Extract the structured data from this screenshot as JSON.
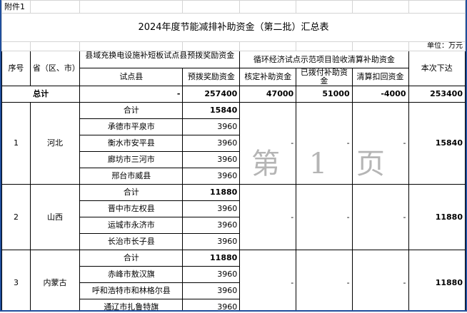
{
  "attachment_label": "附件1",
  "title": "2024年度节能减排补助资金（第二批）汇总表",
  "unit": "单位：万元",
  "headers": {
    "seq": "序号",
    "province": "省（区、市）",
    "group1": "县域充换电设施补短板试点县预拨奖励资金",
    "group1_county": "试点县",
    "group1_amount": "预拨奖励资金",
    "group2": "循环经济试点示范项目验收清算补助资金",
    "approved": "核定补助资金",
    "paid": "已拨付补助资金",
    "recovered": "清算扣回资金",
    "this_time": "本次下达"
  },
  "total": {
    "label": "总计",
    "county": "-",
    "amount": "257400",
    "approved": "47000",
    "paid": "51000",
    "recovered": "-4000",
    "this_time": "253400"
  },
  "subtotal_label": "合计",
  "provinces": [
    {
      "seq": "1",
      "name": "河北",
      "subtotal": "15840",
      "approved": "-",
      "paid": "-",
      "recovered": "-",
      "this_time": "15840",
      "counties": [
        {
          "name": "承德市平泉市",
          "amount": "3960"
        },
        {
          "name": "衡水市安平县",
          "amount": "3960"
        },
        {
          "name": "廊坊市三河市",
          "amount": "3960"
        },
        {
          "name": "邢台市威县",
          "amount": "3960"
        }
      ]
    },
    {
      "seq": "2",
      "name": "山西",
      "subtotal": "11880",
      "approved": "-",
      "paid": "-",
      "recovered": "-",
      "this_time": "11880",
      "counties": [
        {
          "name": "晋中市左权县",
          "amount": "3960"
        },
        {
          "name": "运城市永济市",
          "amount": "3960"
        },
        {
          "name": "长治市长子县",
          "amount": "3960"
        }
      ]
    },
    {
      "seq": "3",
      "name": "内蒙古",
      "subtotal": "11880",
      "approved": "-",
      "paid": "-",
      "recovered": "-",
      "this_time": "11880",
      "counties": [
        {
          "name": "赤峰市敖汉旗",
          "amount": "3960"
        },
        {
          "name": "呼和浩特市和林格尔县",
          "amount": "3960"
        },
        {
          "name": "通辽市扎鲁特旗",
          "amount": "3960"
        }
      ]
    }
  ],
  "watermark": "第 1 页",
  "colors": {
    "frame": "#1f4e9c"
  }
}
